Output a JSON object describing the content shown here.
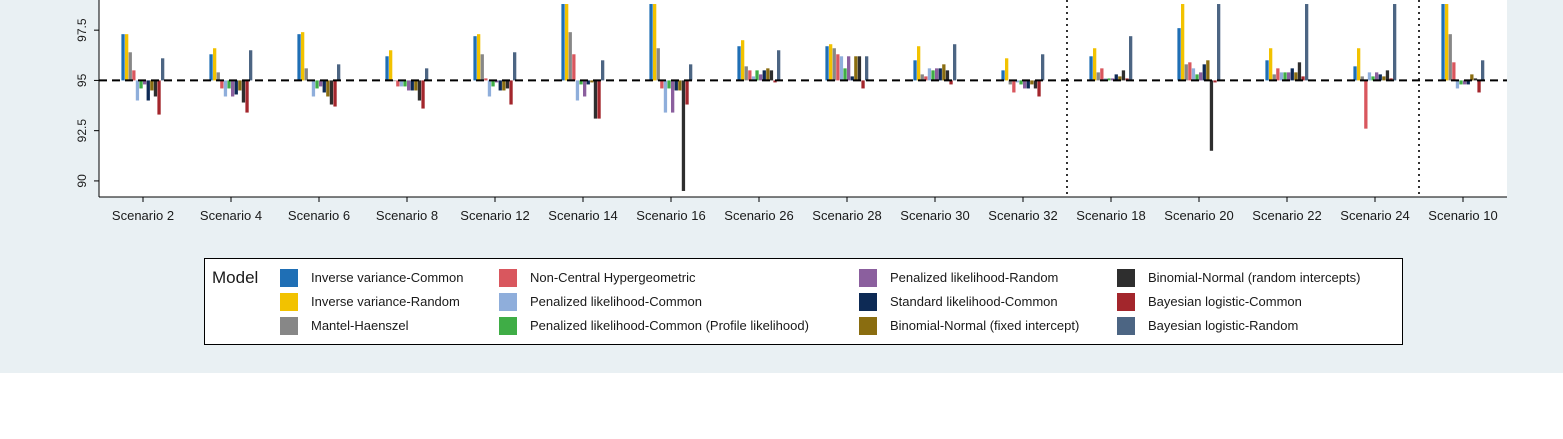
{
  "chart_data": {
    "type": "bar",
    "title": "",
    "xlabel": "",
    "ylabel": "",
    "ylim": [
      89.2,
      99.0
    ],
    "reference_line": 95,
    "y_ticks": [
      90,
      92.5,
      95,
      97.5
    ],
    "y_tick_labels": [
      "90",
      "92.5",
      "95",
      "97.5"
    ],
    "grid": false,
    "legend_position": "bottom",
    "categories": [
      "Scenario 2",
      "Scenario 4",
      "Scenario 6",
      "Scenario 8",
      "Scenario 12",
      "Scenario 14",
      "Scenario 16",
      "Scenario 26",
      "Scenario 28",
      "Scenario 30",
      "Scenario 32",
      "Scenario 18",
      "Scenario 20",
      "Scenario 22",
      "Scenario 24",
      "Scenario 10"
    ],
    "group_separators_after": [
      "Scenario 32",
      "Scenario 24"
    ],
    "series": [
      {
        "name": "Inverse variance-Common",
        "color": "#1f6fb5",
        "values": [
          97.3,
          96.3,
          97.3,
          96.2,
          97.2,
          98.8,
          98.8,
          96.7,
          96.7,
          96.0,
          95.5,
          96.2,
          97.6,
          96.0,
          95.7,
          98.8
        ]
      },
      {
        "name": "Inverse variance-Random",
        "color": "#f2c200",
        "values": [
          97.3,
          96.6,
          97.4,
          96.5,
          97.3,
          98.8,
          98.8,
          97.0,
          96.8,
          96.7,
          96.1,
          96.6,
          98.8,
          96.6,
          96.6,
          98.8
        ]
      },
      {
        "name": "Mantel-Haenszel",
        "color": "#878787",
        "values": [
          96.4,
          95.4,
          95.6,
          95.0,
          96.3,
          97.4,
          96.6,
          95.7,
          96.6,
          95.3,
          94.8,
          95.4,
          95.8,
          95.3,
          95.2,
          97.3
        ]
      },
      {
        "name": "Non-Central Hypergeometric",
        "color": "#d9575e",
        "values": [
          95.5,
          94.6,
          95.0,
          94.7,
          95.1,
          96.3,
          94.6,
          95.5,
          96.3,
          95.2,
          94.4,
          95.6,
          95.9,
          95.6,
          92.6,
          95.9
        ]
      },
      {
        "name": "Penalized likelihood-Common",
        "color": "#8faedb",
        "values": [
          94.0,
          94.2,
          94.2,
          94.7,
          94.2,
          94.0,
          93.4,
          95.2,
          96.2,
          95.6,
          94.9,
          95.1,
          95.6,
          95.4,
          95.4,
          94.6
        ]
      },
      {
        "name": "Penalized likelihood-Common (Profile likelihood)",
        "color": "#3fad46",
        "values": [
          94.6,
          94.6,
          94.6,
          94.7,
          94.7,
          94.8,
          94.6,
          95.5,
          95.6,
          95.5,
          94.8,
          95.1,
          95.3,
          95.4,
          95.2,
          94.8
        ]
      },
      {
        "name": "Penalized likelihood-Random",
        "color": "#8b5f9e",
        "values": [
          94.8,
          94.2,
          94.7,
          94.5,
          94.9,
          94.2,
          93.4,
          95.3,
          96.2,
          95.6,
          94.6,
          95.1,
          95.4,
          95.4,
          95.4,
          94.8
        ]
      },
      {
        "name": "Standard likelihood-Common",
        "color": "#0d2a55",
        "values": [
          94.0,
          94.3,
          94.4,
          94.5,
          94.5,
          94.8,
          94.5,
          95.5,
          95.2,
          95.6,
          94.6,
          95.3,
          95.8,
          95.6,
          95.3,
          94.8
        ]
      },
      {
        "name": "Binomial-Normal (fixed intercept)",
        "color": "#8a6d10",
        "values": [
          94.5,
          94.5,
          94.2,
          94.5,
          94.5,
          94.9,
          94.5,
          95.6,
          96.2,
          95.8,
          94.8,
          95.2,
          96.0,
          95.4,
          95.2,
          95.3
        ]
      },
      {
        "name": "Binomial-Normal (random intercepts)",
        "color": "#2e2e2e",
        "values": [
          94.2,
          93.9,
          93.8,
          94.0,
          94.6,
          93.1,
          89.5,
          95.5,
          96.2,
          95.5,
          94.6,
          95.5,
          91.5,
          95.9,
          95.5,
          95.1
        ]
      },
      {
        "name": "Bayesian logistic-Common",
        "color": "#a3262c",
        "values": [
          93.3,
          93.4,
          93.7,
          93.6,
          93.8,
          93.1,
          93.8,
          94.9,
          94.6,
          94.8,
          94.2,
          95.1,
          94.9,
          95.2,
          95.1,
          94.4
        ]
      },
      {
        "name": "Bayesian logistic-Random",
        "color": "#4c6583",
        "values": [
          96.1,
          96.5,
          95.8,
          95.6,
          96.4,
          96.0,
          95.8,
          96.5,
          96.2,
          96.8,
          96.3,
          97.2,
          98.8,
          98.8,
          98.8,
          96.0
        ]
      }
    ]
  },
  "legend": {
    "title": "Model",
    "entries": [
      {
        "label": "Inverse variance-Common",
        "color": "#1f6fb5"
      },
      {
        "label": "Inverse variance-Random",
        "color": "#f2c200"
      },
      {
        "label": "Mantel-Haenszel",
        "color": "#878787"
      },
      {
        "label": "Non-Central Hypergeometric",
        "color": "#d9575e"
      },
      {
        "label": "Penalized likelihood-Common",
        "color": "#8faedb"
      },
      {
        "label": "Penalized likelihood-Common (Profile likelihood)",
        "color": "#3fad46"
      },
      {
        "label": "Penalized likelihood-Random",
        "color": "#8b5f9e"
      },
      {
        "label": "Standard likelihood-Common",
        "color": "#0d2a55"
      },
      {
        "label": "Binomial-Normal (fixed intercept)",
        "color": "#8a6d10"
      },
      {
        "label": "Binomial-Normal (random intercepts)",
        "color": "#2e2e2e"
      },
      {
        "label": "Bayesian logistic-Common",
        "color": "#a3262c"
      },
      {
        "label": "Bayesian logistic-Random",
        "color": "#4c6583"
      }
    ]
  }
}
